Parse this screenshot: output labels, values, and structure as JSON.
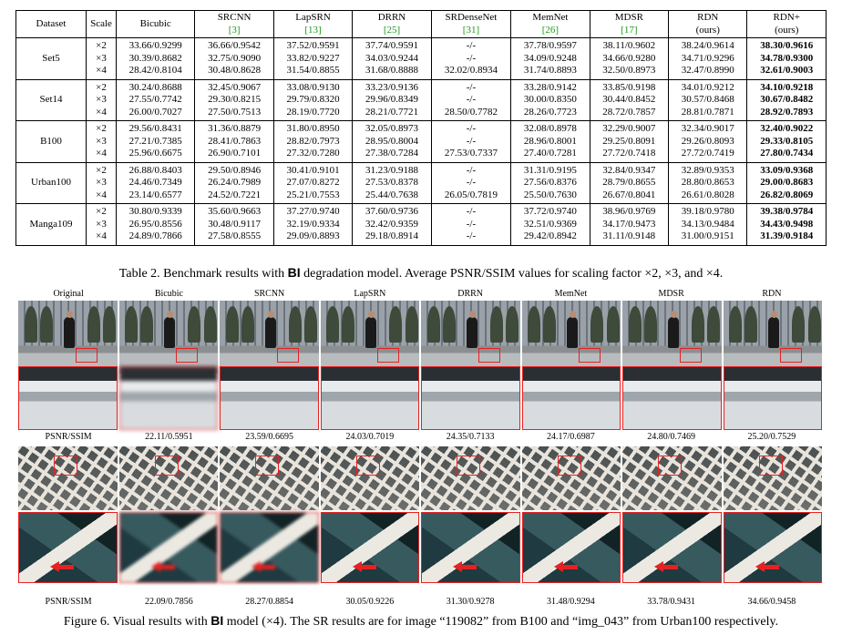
{
  "table": {
    "headers": [
      {
        "name": "Dataset",
        "ref": ""
      },
      {
        "name": "Scale",
        "ref": ""
      },
      {
        "name": "Bicubic",
        "ref": ""
      },
      {
        "name": "SRCNN",
        "ref": "[3]"
      },
      {
        "name": "LapSRN",
        "ref": "[13]"
      },
      {
        "name": "DRRN",
        "ref": "[25]"
      },
      {
        "name": "SRDenseNet",
        "ref": "[31]"
      },
      {
        "name": "MemNet",
        "ref": "[26]"
      },
      {
        "name": "MDSR",
        "ref": "[17]"
      },
      {
        "name": "RDN",
        "ref": "(ours)"
      },
      {
        "name": "RDN+",
        "ref": "(ours)"
      }
    ],
    "rows": [
      {
        "dataset": "Set5",
        "scales": [
          "×2",
          "×3",
          "×4"
        ],
        "cols": [
          [
            "33.66/0.9299",
            "30.39/0.8682",
            "28.42/0.8104"
          ],
          [
            "36.66/0.9542",
            "32.75/0.9090",
            "30.48/0.8628"
          ],
          [
            "37.52/0.9591",
            "33.82/0.9227",
            "31.54/0.8855"
          ],
          [
            "37.74/0.9591",
            "34.03/0.9244",
            "31.68/0.8888"
          ],
          [
            "-/-",
            "-/-",
            "32.02/0.8934"
          ],
          [
            "37.78/0.9597",
            "34.09/0.9248",
            "31.74/0.8893"
          ],
          [
            "38.11/0.9602",
            "34.66/0.9280",
            "32.50/0.8973"
          ],
          [
            "38.24/0.9614",
            "34.71/0.9296",
            "32.47/0.8990"
          ],
          [
            "38.30/0.9616",
            "34.78/0.9300",
            "32.61/0.9003"
          ]
        ]
      },
      {
        "dataset": "Set14",
        "scales": [
          "×2",
          "×3",
          "×4"
        ],
        "cols": [
          [
            "30.24/0.8688",
            "27.55/0.7742",
            "26.00/0.7027"
          ],
          [
            "32.45/0.9067",
            "29.30/0.8215",
            "27.50/0.7513"
          ],
          [
            "33.08/0.9130",
            "29.79/0.8320",
            "28.19/0.7720"
          ],
          [
            "33.23/0.9136",
            "29.96/0.8349",
            "28.21/0.7721"
          ],
          [
            "-/-",
            "-/-",
            "28.50/0.7782"
          ],
          [
            "33.28/0.9142",
            "30.00/0.8350",
            "28.26/0.7723"
          ],
          [
            "33.85/0.9198",
            "30.44/0.8452",
            "28.72/0.7857"
          ],
          [
            "34.01/0.9212",
            "30.57/0.8468",
            "28.81/0.7871"
          ],
          [
            "34.10/0.9218",
            "30.67/0.8482",
            "28.92/0.7893"
          ]
        ]
      },
      {
        "dataset": "B100",
        "scales": [
          "×2",
          "×3",
          "×4"
        ],
        "cols": [
          [
            "29.56/0.8431",
            "27.21/0.7385",
            "25.96/0.6675"
          ],
          [
            "31.36/0.8879",
            "28.41/0.7863",
            "26.90/0.7101"
          ],
          [
            "31.80/0.8950",
            "28.82/0.7973",
            "27.32/0.7280"
          ],
          [
            "32.05/0.8973",
            "28.95/0.8004",
            "27.38/0.7284"
          ],
          [
            "-/-",
            "-/-",
            "27.53/0.7337"
          ],
          [
            "32.08/0.8978",
            "28.96/0.8001",
            "27.40/0.7281"
          ],
          [
            "32.29/0.9007",
            "29.25/0.8091",
            "27.72/0.7418"
          ],
          [
            "32.34/0.9017",
            "29.26/0.8093",
            "27.72/0.7419"
          ],
          [
            "32.40/0.9022",
            "29.33/0.8105",
            "27.80/0.7434"
          ]
        ]
      },
      {
        "dataset": "Urban100",
        "scales": [
          "×2",
          "×3",
          "×4"
        ],
        "cols": [
          [
            "26.88/0.8403",
            "24.46/0.7349",
            "23.14/0.6577"
          ],
          [
            "29.50/0.8946",
            "26.24/0.7989",
            "24.52/0.7221"
          ],
          [
            "30.41/0.9101",
            "27.07/0.8272",
            "25.21/0.7553"
          ],
          [
            "31.23/0.9188",
            "27.53/0.8378",
            "25.44/0.7638"
          ],
          [
            "-/-",
            "-/-",
            "26.05/0.7819"
          ],
          [
            "31.31/0.9195",
            "27.56/0.8376",
            "25.50/0.7630"
          ],
          [
            "32.84/0.9347",
            "28.79/0.8655",
            "26.67/0.8041"
          ],
          [
            "32.89/0.9353",
            "28.80/0.8653",
            "26.61/0.8028"
          ],
          [
            "33.09/0.9368",
            "29.00/0.8683",
            "26.82/0.8069"
          ]
        ]
      },
      {
        "dataset": "Manga109",
        "scales": [
          "×2",
          "×3",
          "×4"
        ],
        "cols": [
          [
            "30.80/0.9339",
            "26.95/0.8556",
            "24.89/0.7866"
          ],
          [
            "35.60/0.9663",
            "30.48/0.9117",
            "27.58/0.8555"
          ],
          [
            "37.27/0.9740",
            "32.19/0.9334",
            "29.09/0.8893"
          ],
          [
            "37.60/0.9736",
            "32.42/0.9359",
            "29.18/0.8914"
          ],
          [
            "-/-",
            "-/-",
            "-/-"
          ],
          [
            "37.72/0.9740",
            "32.51/0.9369",
            "29.42/0.8942"
          ],
          [
            "38.96/0.9769",
            "34.17/0.9473",
            "31.11/0.9148"
          ],
          [
            "39.18/0.9780",
            "34.13/0.9484",
            "31.00/0.9151"
          ],
          [
            "39.38/0.9784",
            "34.43/0.9498",
            "31.39/0.9184"
          ]
        ]
      }
    ]
  },
  "table_caption": {
    "pre": "Table 2. Benchmark results with ",
    "bold": "BI",
    "post": " degradation model. Average PSNR/SSIM values for scaling factor ×2, ×3, and ×4."
  },
  "figure": {
    "labels": [
      "Original",
      "Bicubic",
      "SRCNN",
      "LapSRN",
      "DRRN",
      "MemNet",
      "MDSR",
      "RDN"
    ],
    "row1_values": [
      "PSNR/SSIM",
      "22.11/0.5951",
      "23.59/0.6695",
      "24.03/0.7019",
      "24.35/0.7133",
      "24.17/0.6987",
      "24.80/0.7469",
      "25.20/0.7529"
    ],
    "row2_values": [
      "PSNR/SSIM",
      "22.09/0.7856",
      "28.27/0.8854",
      "30.05/0.9226",
      "31.30/0.9278",
      "31.48/0.9294",
      "33.78/0.9431",
      "34.66/0.9458"
    ]
  },
  "figure_caption": {
    "pre": "Figure 6. Visual results with ",
    "bold": "BI",
    "post": " model (×4). The SR results are for image “119082” from B100 and “img_043” from Urban100 respectively."
  },
  "colors": {
    "reference": "#1a9c1a",
    "highlight": "#e52222"
  }
}
